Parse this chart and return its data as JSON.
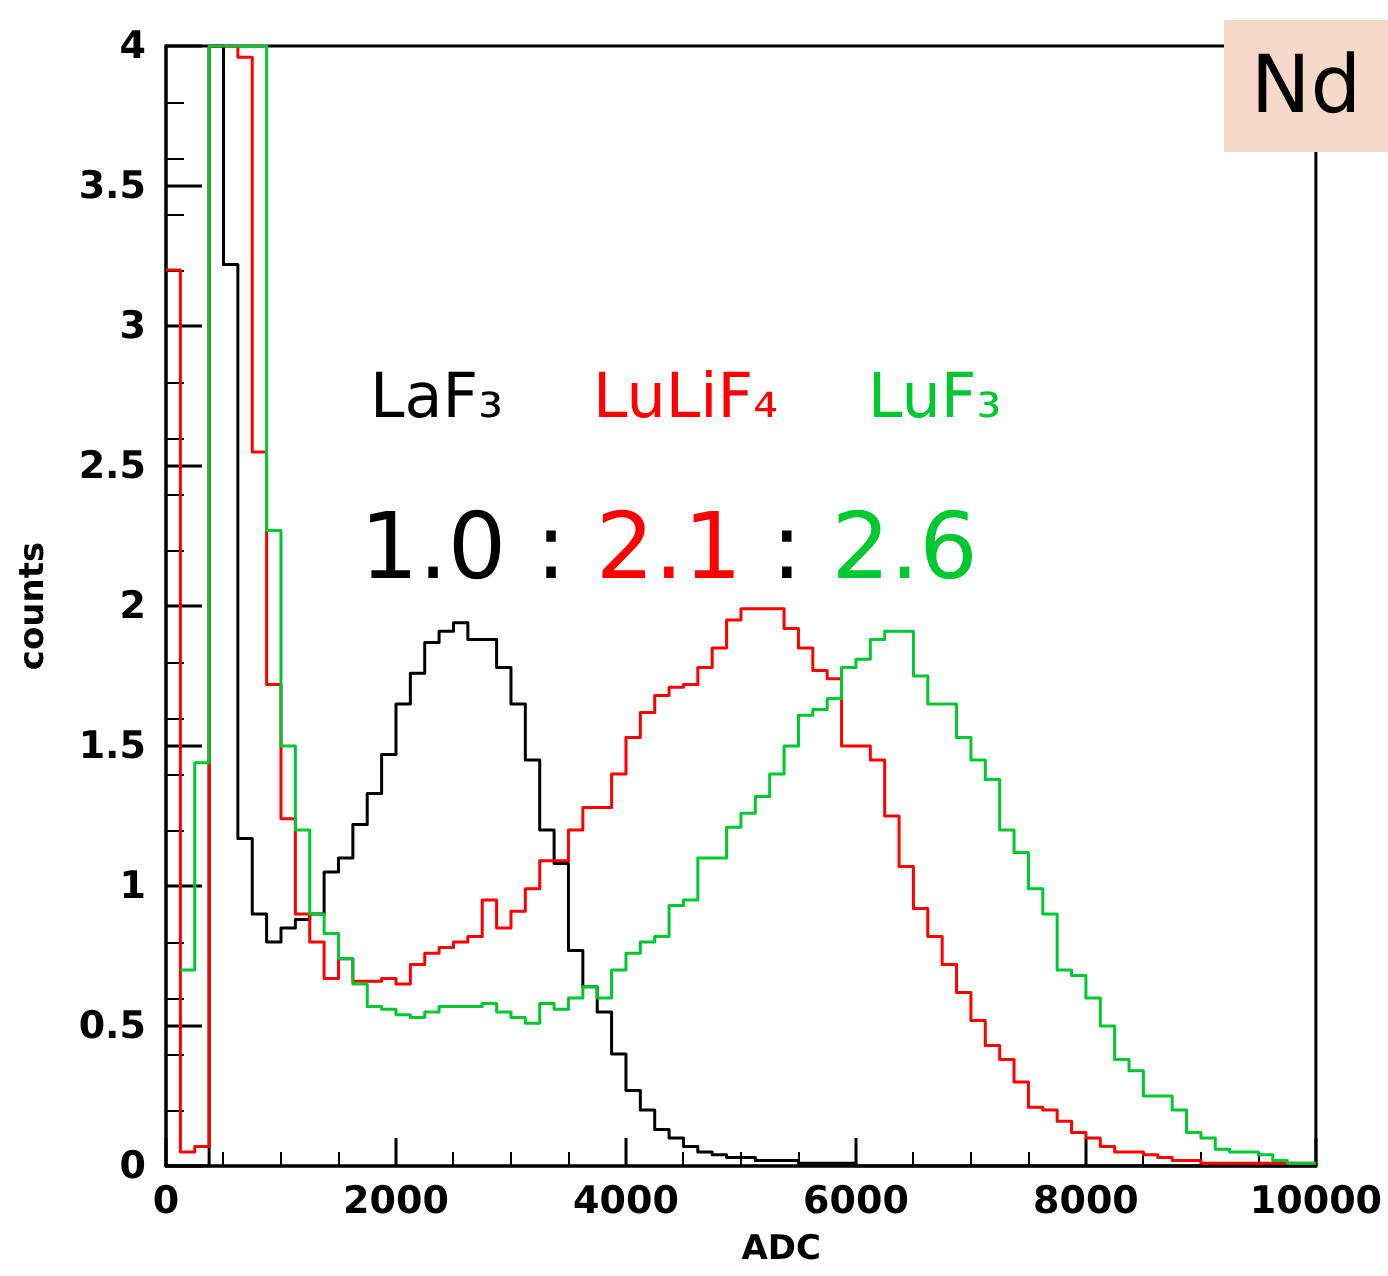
{
  "chart_data": {
    "type": "histogram",
    "xlabel": "ADC",
    "ylabel": "counts",
    "annotations": [
      "1.0 : 2.1 : 2.6",
      "Nd"
    ],
    "bins": [
      0,
      125,
      250,
      375,
      500,
      625,
      750,
      875,
      1000,
      1125,
      1250,
      1375,
      1500,
      1625,
      1750,
      1875,
      2000,
      2125,
      2250,
      2375,
      2500,
      2625,
      2750,
      2875,
      3000,
      3125,
      3250,
      3375,
      3500,
      3625,
      3750,
      3875,
      4000,
      4125,
      4250,
      4375,
      4500,
      4625,
      4750,
      4875,
      5000,
      5125,
      5250,
      5375,
      5500,
      5625,
      5750,
      5875,
      6000,
      6125,
      6250,
      6375,
      6500,
      6625,
      6750,
      6875,
      7000,
      7125,
      7250,
      7375,
      7500,
      7625,
      7750,
      7875,
      8000,
      8125,
      8250,
      8375,
      8500,
      8625,
      8750,
      8875,
      9000,
      9125,
      9250,
      9375,
      9500,
      9625,
      9750,
      9875,
      10000
    ],
    "series": [
      {
        "name": "LaF₃",
        "color": "#000000",
        "values": [
          0,
          0,
          0,
          4,
          3.22,
          1.17,
          0.9,
          0.8,
          0.85,
          0.88,
          0.9,
          1.05,
          1.1,
          1.22,
          1.33,
          1.47,
          1.65,
          1.76,
          1.87,
          1.91,
          1.94,
          1.88,
          1.88,
          1.78,
          1.65,
          1.45,
          1.2,
          1.08,
          0.77,
          0.64,
          0.55,
          0.4,
          0.27,
          0.2,
          0.13,
          0.1,
          0.07,
          0.05,
          0.04,
          0.03,
          0.03,
          0.02,
          0.02,
          0.02,
          0.01,
          0.01,
          0.01,
          0.01,
          0,
          0,
          0,
          0,
          0,
          0,
          0,
          0,
          0,
          0,
          0,
          0,
          0,
          0,
          0,
          0,
          0,
          0,
          0,
          0,
          0,
          0,
          0,
          0,
          0,
          0,
          0,
          0,
          0,
          0,
          0,
          0
        ]
      },
      {
        "name": "LuLiF₄",
        "color": "#ff0000",
        "values": [
          3.2,
          0.05,
          0.07,
          4,
          4,
          3.96,
          2.55,
          1.72,
          1.24,
          0.9,
          0.8,
          0.67,
          0.74,
          0.66,
          0.66,
          0.67,
          0.65,
          0.72,
          0.76,
          0.78,
          0.8,
          0.82,
          0.95,
          0.85,
          0.91,
          0.99,
          1.09,
          1.09,
          1.2,
          1.28,
          1.28,
          1.4,
          1.53,
          1.62,
          1.68,
          1.71,
          1.72,
          1.78,
          1.85,
          1.95,
          1.99,
          1.99,
          1.99,
          1.92,
          1.85,
          1.77,
          1.74,
          1.5,
          1.5,
          1.45,
          1.25,
          1.07,
          0.92,
          0.82,
          0.72,
          0.62,
          0.52,
          0.43,
          0.38,
          0.3,
          0.21,
          0.2,
          0.16,
          0.12,
          0.1,
          0.07,
          0.05,
          0.05,
          0.04,
          0.03,
          0.02,
          0.02,
          0.01,
          0.01,
          0.01,
          0.01,
          0.01,
          0.01,
          0.01,
          0.01
        ]
      },
      {
        "name": "LuF₃",
        "color": "#00c830",
        "bins": [
          125,
          250,
          375,
          500,
          625,
          750,
          875,
          1000,
          1125,
          1250,
          1375,
          1500,
          1625,
          1750,
          1875,
          2000,
          2125,
          2250,
          2375,
          2500,
          2625,
          2750,
          2875,
          3000,
          3125,
          3250,
          3375,
          3500,
          3625,
          3750,
          3875,
          4000,
          4125,
          4250,
          4375,
          4500,
          4625,
          4750,
          4875,
          5000,
          5125,
          5250,
          5375,
          5500,
          5625,
          5750,
          5875,
          6000,
          6125,
          6250,
          6375,
          6500,
          6625,
          6750,
          6875,
          7000,
          7125,
          7250,
          7375,
          7500,
          7625,
          7750,
          7875,
          8000,
          8125,
          8250,
          8375,
          8500,
          8625,
          8750,
          8875,
          9000,
          9125,
          9250,
          9375,
          9500,
          9625,
          9750,
          9875,
          10000
        ],
        "values": [
          0.7,
          1.44,
          4,
          4,
          4,
          4,
          2.27,
          1.5,
          1.2,
          0.9,
          0.83,
          0.74,
          0.65,
          0.57,
          0.56,
          0.54,
          0.53,
          0.55,
          0.57,
          0.57,
          0.57,
          0.58,
          0.55,
          0.53,
          0.51,
          0.58,
          0.56,
          0.6,
          0.64,
          0.6,
          0.7,
          0.76,
          0.8,
          0.82,
          0.93,
          0.95,
          1.1,
          1.1,
          1.21,
          1.26,
          1.32,
          1.4,
          1.5,
          1.61,
          1.63,
          1.67,
          1.78,
          1.81,
          1.88,
          1.91,
          1.91,
          1.75,
          1.65,
          1.65,
          1.53,
          1.45,
          1.38,
          1.2,
          1.12,
          0.99,
          0.9,
          0.7,
          0.68,
          0.6,
          0.5,
          0.38,
          0.34,
          0.25,
          0.25,
          0.2,
          0.12,
          0.1,
          0.06,
          0.05,
          0.05,
          0.04,
          0.02,
          0.01,
          0.01
        ]
      }
    ],
    "xlim": [
      0,
      10000
    ],
    "xticks": [
      0,
      2000,
      4000,
      6000,
      8000,
      10000
    ],
    "ylim": [
      0,
      4
    ],
    "yticks": [
      0,
      {
        "value": 0.5,
        "label": "0.5"
      },
      1,
      {
        "value": 1.5,
        "label": "1.5"
      },
      2,
      {
        "value": 2.5,
        "label": "2.5"
      },
      3,
      {
        "value": 3.5,
        "label": "3.5"
      },
      4
    ],
    "grid": false,
    "legend": "top"
  }
}
